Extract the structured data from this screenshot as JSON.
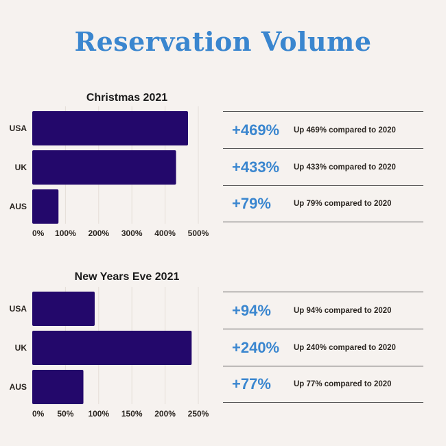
{
  "title": "Reservation Volume",
  "colors": {
    "bar": "#23086b",
    "accent": "#3a86cf",
    "grid": "#e4ddd8"
  },
  "chart_data": [
    {
      "type": "bar",
      "orientation": "horizontal",
      "title": "Christmas 2021",
      "categories": [
        "USA",
        "UK",
        "AUS"
      ],
      "values": [
        469,
        433,
        79
      ],
      "xlim": [
        0,
        500
      ],
      "ticks": [
        "0%",
        "100%",
        "200%",
        "300%",
        "400%",
        "500%"
      ],
      "tick_values": [
        0,
        100,
        200,
        300,
        400,
        500
      ],
      "grid": true
    },
    {
      "type": "bar",
      "orientation": "horizontal",
      "title": "New Years Eve 2021",
      "categories": [
        "USA",
        "UK",
        "AUS"
      ],
      "values": [
        94,
        240,
        77
      ],
      "xlim": [
        0,
        250
      ],
      "ticks": [
        "0%",
        "50%",
        "100%",
        "150%",
        "200%",
        "250%"
      ],
      "tick_values": [
        0,
        50,
        100,
        150,
        200,
        250
      ],
      "grid": true
    }
  ],
  "stats": [
    [
      {
        "value": "+469%",
        "desc": "Up 469% compared to 2020"
      },
      {
        "value": "+433%",
        "desc": "Up 433% compared to 2020"
      },
      {
        "value": "+79%",
        "desc": "Up 79% compared to 2020"
      }
    ],
    [
      {
        "value": "+94%",
        "desc": "Up 94% compared to 2020"
      },
      {
        "value": "+240%",
        "desc": "Up 240% compared to 2020"
      },
      {
        "value": "+77%",
        "desc": "Up 77% compared to 2020"
      }
    ]
  ]
}
